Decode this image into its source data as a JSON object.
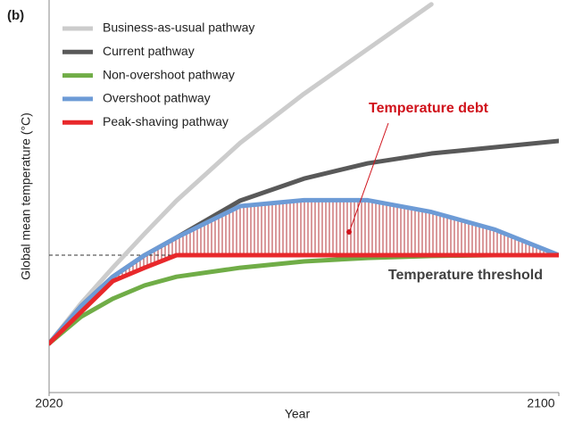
{
  "chart_data": {
    "type": "line",
    "panel_label": "(b)",
    "x_label": "Year",
    "y_label": "Global mean temperature (°C)",
    "x": [
      2020,
      2025,
      2030,
      2035,
      2040,
      2050,
      2060,
      2070,
      2080,
      2090,
      2100
    ],
    "xlim": [
      2020,
      2100
    ],
    "xticks": [
      2020,
      2100
    ],
    "ylim": [
      0,
      10
    ],
    "legend": "upper left",
    "series": [
      {
        "name": "Business-as-usual pathway",
        "color": "#cccccc",
        "values": [
          1.25,
          2.27,
          3.18,
          4.05,
          4.89,
          6.36,
          7.61,
          8.75,
          9.89,
          null,
          null
        ]
      },
      {
        "name": "Current pathway",
        "color": "#595959",
        "values": [
          1.25,
          2.2,
          2.95,
          3.5,
          3.95,
          4.89,
          5.45,
          5.84,
          6.09,
          6.25,
          6.41
        ]
      },
      {
        "name": "Non-overshoot pathway",
        "color": "#70ad47",
        "values": [
          1.25,
          1.93,
          2.39,
          2.73,
          2.95,
          3.18,
          3.34,
          3.43,
          3.48,
          3.5,
          3.5
        ]
      },
      {
        "name": "Overshoot pathway",
        "color": "#6d9bd6",
        "values": [
          1.25,
          2.2,
          2.95,
          3.5,
          3.95,
          4.75,
          4.9,
          4.9,
          4.6,
          4.15,
          3.5
        ]
      },
      {
        "name": "Peak-shaving pathway",
        "color": "#e8282b",
        "values": [
          1.25,
          2.05,
          2.84,
          3.18,
          3.5,
          3.5,
          3.5,
          3.5,
          3.5,
          3.5,
          3.5
        ]
      }
    ],
    "threshold": 3.5,
    "threshold_label": "Temperature threshold",
    "debt_label": "Temperature debt"
  }
}
